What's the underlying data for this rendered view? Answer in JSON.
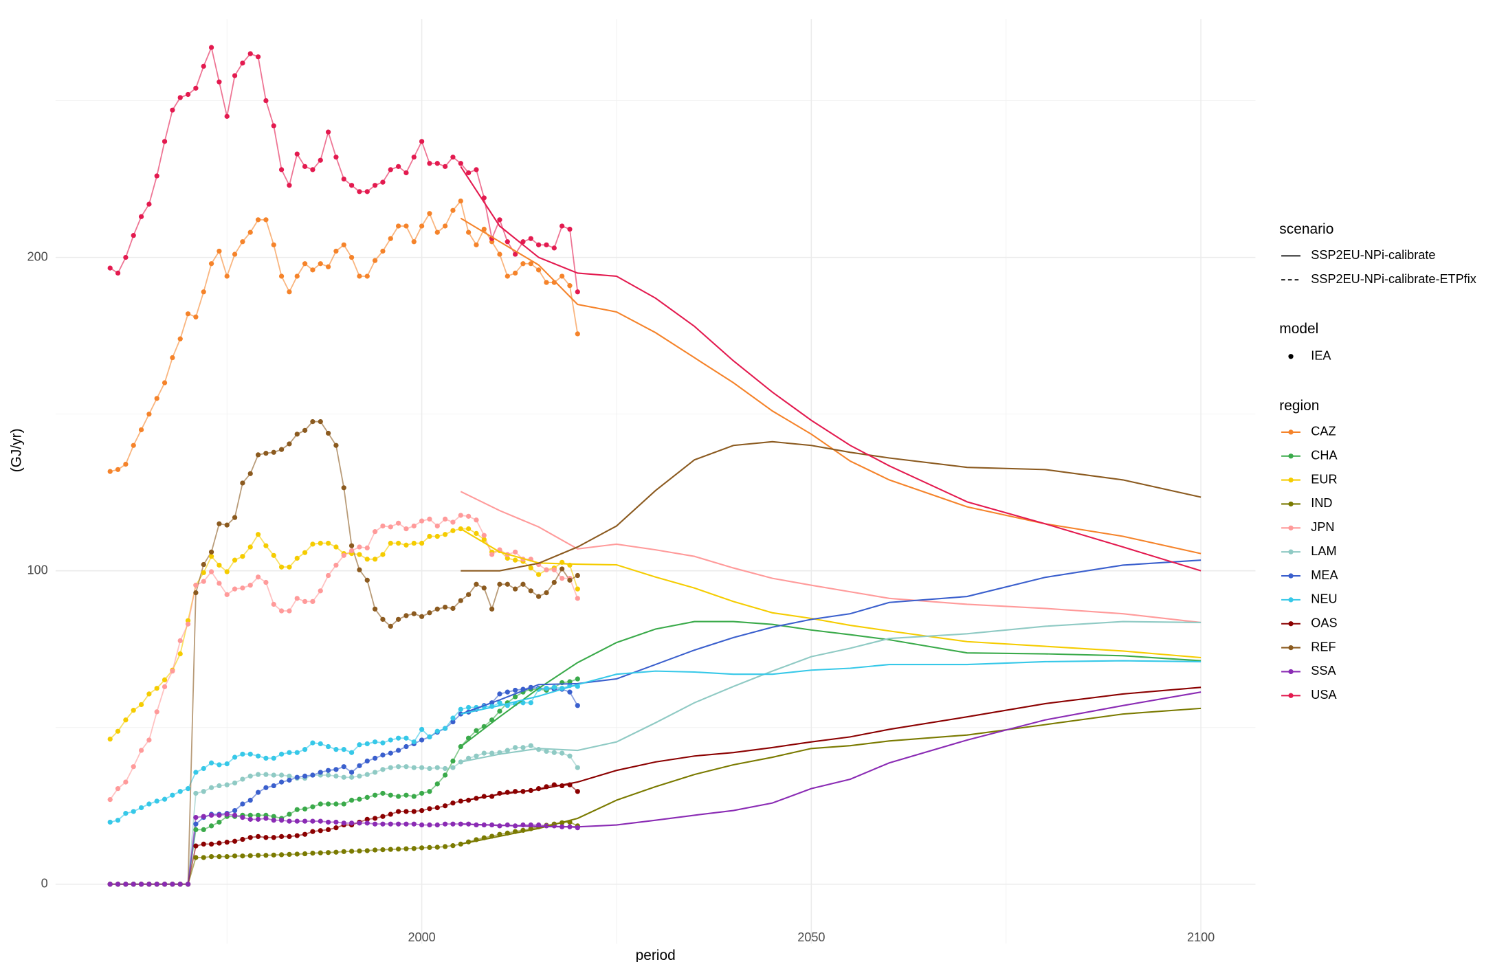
{
  "chart_data": {
    "type": "line",
    "y_label": "(GJ/yr)",
    "x_label": "period",
    "xlim": [
      1953,
      2107
    ],
    "ylim": [
      -19,
      276
    ],
    "xticks": [
      2000,
      2050,
      2100
    ],
    "x_minor_ticks": [
      1975,
      2025,
      2075
    ],
    "yticks": [
      0,
      100,
      200
    ],
    "y_minor_ticks": [
      50,
      150,
      250
    ],
    "grid": true,
    "legend_position": "right",
    "scenario_title": "scenario",
    "scenarios": [
      {
        "name": "SSP2EU-NPi-calibrate",
        "dash": "solid"
      },
      {
        "name": "SSP2EU-NPi-calibrate-ETPfix",
        "dash": "dashed"
      }
    ],
    "model_title": "model",
    "models": [
      "IEA"
    ],
    "region_title": "region",
    "hist_x": [
      1960,
      1961,
      1962,
      1963,
      1964,
      1965,
      1966,
      1967,
      1968,
      1969,
      1970,
      1971,
      1972,
      1973,
      1974,
      1975,
      1976,
      1977,
      1978,
      1979,
      1980,
      1981,
      1982,
      1983,
      1984,
      1985,
      1986,
      1987,
      1988,
      1989,
      1990,
      1991,
      1992,
      1993,
      1994,
      1995,
      1996,
      1997,
      1998,
      1999,
      2000,
      2001,
      2002,
      2003,
      2004,
      2005,
      2006,
      2007,
      2008,
      2009,
      2010,
      2011,
      2012,
      2013,
      2014,
      2015,
      2016,
      2017,
      2018,
      2019,
      2020
    ],
    "model_x": [
      2005,
      2010,
      2015,
      2020,
      2025,
      2030,
      2035,
      2040,
      2045,
      2050,
      2055,
      2060,
      2070,
      2080,
      2090,
      2100
    ],
    "series": [
      {
        "name": "CAZ",
        "color": "#f5832a",
        "hist": [
          131.7,
          132.3,
          134,
          140,
          145,
          150,
          155,
          160,
          168,
          174,
          182,
          181,
          189,
          198,
          202,
          194,
          201,
          205,
          208,
          212,
          212,
          204,
          194,
          189,
          194,
          198,
          196,
          198,
          197,
          202,
          204,
          200,
          194,
          194,
          199,
          202,
          206,
          210,
          210,
          205,
          210,
          214,
          208,
          210,
          215,
          218,
          208,
          204,
          209,
          205,
          201,
          194,
          195,
          198,
          198,
          196,
          192,
          192,
          194,
          191,
          175.6
        ],
        "model": [
          212.5,
          205,
          197.6,
          185,
          182.6,
          176,
          168,
          160,
          151,
          143.6,
          135,
          129,
          120.4,
          115,
          111,
          105.5
        ]
      },
      {
        "name": "CHA",
        "color": "#3aaa4a",
        "hist": [
          0,
          0,
          0,
          0,
          0,
          0,
          0,
          0,
          0,
          0,
          0,
          17.4,
          17.4,
          18.6,
          19.8,
          21.6,
          21.6,
          22,
          22,
          22,
          22,
          21.6,
          21,
          22.3,
          23.8,
          24,
          24.7,
          25.6,
          25.6,
          25.6,
          25.6,
          26.8,
          27.1,
          27.7,
          28.4,
          29,
          28.4,
          28,
          28.4,
          28,
          29,
          29.6,
          32,
          34.8,
          39.3,
          43.9,
          46.6,
          49,
          50.3,
          52.4,
          55.2,
          57.9,
          59.8,
          61.3,
          62.2,
          62.2,
          61.9,
          62.8,
          64.3,
          64.6,
          65.5
        ],
        "model": [
          43.9,
          53.4,
          62.5,
          70.7,
          77.1,
          81.4,
          83.8,
          83.8,
          82.9,
          81.1,
          79.6,
          78,
          73.8,
          73.5,
          72.9,
          71.3
        ]
      },
      {
        "name": "EUR",
        "color": "#f5cc00",
        "hist": [
          46.3,
          48.8,
          52.4,
          55.5,
          57.3,
          60.7,
          62.5,
          65.2,
          68.3,
          73.5,
          84.1,
          95.4,
          99.4,
          104.6,
          101.8,
          99.7,
          103.4,
          104.6,
          107.6,
          111.6,
          108,
          104.9,
          101.2,
          101.2,
          104,
          105.8,
          108.5,
          108.8,
          108.8,
          107.6,
          105.5,
          105.5,
          105.2,
          103.7,
          103.7,
          105.2,
          108.8,
          108.8,
          108.2,
          108.8,
          108.8,
          111,
          111,
          111.6,
          112.8,
          113.4,
          113.4,
          111.9,
          110,
          106,
          106.4,
          104,
          103.4,
          103,
          100.9,
          98.8,
          100.3,
          100.9,
          102.7,
          101.8,
          94.2
        ],
        "model": [
          113.4,
          106,
          102.5,
          102.1,
          101.9,
          98,
          94.5,
          90.2,
          86.6,
          84.8,
          82.6,
          80.8,
          77.4,
          75.9,
          74.4,
          72.3
        ]
      },
      {
        "name": "IND",
        "color": "#7a7a00",
        "hist": [
          0,
          0,
          0,
          0,
          0,
          0,
          0,
          0,
          0,
          0,
          0,
          8.5,
          8.5,
          8.8,
          8.8,
          8.8,
          9,
          9,
          9.1,
          9.2,
          9.2,
          9.3,
          9.4,
          9.5,
          9.6,
          9.7,
          9.9,
          10,
          10.1,
          10.2,
          10.4,
          10.5,
          10.6,
          10.7,
          10.9,
          11,
          11.1,
          11.2,
          11.3,
          11.4,
          11.6,
          11.7,
          11.8,
          12,
          12.3,
          12.8,
          13.5,
          14.2,
          14.8,
          15.3,
          15.9,
          16.3,
          16.8,
          17.2,
          17.7,
          18.3,
          18.8,
          19.2,
          19.6,
          19.8,
          18.6
        ],
        "model": [
          12.8,
          15.3,
          17.8,
          21,
          26.8,
          31.1,
          35,
          38.1,
          40.5,
          43.3,
          44.2,
          45.7,
          47.6,
          50.9,
          54.3,
          56.1
        ]
      },
      {
        "name": "JPN",
        "color": "#ff9a9a",
        "hist": [
          27,
          30.5,
          32.6,
          37.5,
          42.7,
          46,
          55,
          63,
          68,
          77.7,
          83,
          95.4,
          96.6,
          99.7,
          96,
          92.4,
          94.2,
          94.5,
          95.4,
          98,
          96.3,
          89.3,
          87.2,
          87.2,
          91.2,
          90.2,
          90.2,
          93.6,
          98.5,
          101.8,
          104.9,
          106.4,
          107.6,
          107.3,
          112.5,
          114.3,
          114,
          115.2,
          113.4,
          114.3,
          115.9,
          116.5,
          114.3,
          116.5,
          115.5,
          117.7,
          117.4,
          116.2,
          111.3,
          105.2,
          106.7,
          105.2,
          106,
          103.7,
          103.7,
          102,
          100.3,
          100.3,
          97.6,
          97.6,
          91.2
        ],
        "model": [
          125.3,
          119.2,
          114,
          107,
          108.5,
          106.7,
          104.6,
          100.9,
          97.6,
          95.4,
          93.3,
          91.2,
          89.3,
          88,
          86.3,
          83.5
        ]
      },
      {
        "name": "LAM",
        "color": "#8fcac4",
        "hist": [
          0,
          0,
          0,
          0,
          0,
          0,
          0,
          0,
          0,
          0,
          0,
          29,
          29.6,
          30.8,
          31.4,
          31.7,
          32.3,
          33.5,
          34.5,
          35,
          35,
          34.8,
          34.8,
          34.5,
          33.8,
          33.8,
          34.8,
          34.8,
          34.8,
          34.5,
          34.1,
          34.1,
          34.5,
          35,
          35.7,
          36.6,
          37.2,
          37.5,
          37.5,
          37.2,
          37.2,
          36.9,
          37.2,
          36.9,
          37.2,
          39,
          40.2,
          40.9,
          41.8,
          41.8,
          42,
          42.7,
          43.6,
          43.6,
          44.2,
          43,
          42.4,
          42,
          41.8,
          40.9,
          37.2
        ],
        "model": [
          39,
          41.5,
          43.3,
          42.7,
          45.4,
          51.5,
          57.9,
          63.1,
          68,
          72.6,
          75.3,
          78.4,
          79.9,
          82.3,
          83.8,
          83.5
        ]
      },
      {
        "name": "MEA",
        "color": "#3a5fcd",
        "hist": [
          0,
          0,
          0,
          0,
          0,
          0,
          0,
          0,
          0,
          0,
          0,
          19.2,
          21.3,
          22.3,
          22.3,
          22.6,
          23.5,
          25.6,
          26.8,
          29.3,
          30.8,
          31.4,
          32.6,
          33.2,
          34.1,
          34.5,
          34.8,
          35.7,
          36.3,
          36.6,
          37.5,
          35.7,
          37.8,
          39.3,
          40.2,
          41.2,
          41.8,
          42.7,
          43.9,
          44.8,
          46,
          47,
          48.5,
          49.7,
          51.8,
          54.3,
          54.9,
          55.8,
          57,
          57.9,
          60.7,
          61.3,
          61.9,
          62.2,
          62.8,
          62.5,
          62.5,
          62.2,
          62.2,
          61.3,
          57
        ],
        "model": [
          54.3,
          58.8,
          63.7,
          64,
          65.5,
          70.1,
          74.7,
          78.7,
          82,
          84.5,
          86.3,
          89.9,
          91.8,
          97.9,
          101.8,
          103.4
        ]
      },
      {
        "name": "NEU",
        "color": "#36c8e8",
        "hist": [
          19.8,
          20.4,
          22.6,
          23.2,
          24.4,
          25.6,
          26.5,
          27.1,
          28.4,
          29.6,
          30.5,
          35.7,
          36.9,
          38.7,
          38.1,
          38.4,
          40.5,
          41.5,
          41.5,
          40.9,
          40.2,
          40.2,
          41.5,
          42,
          42,
          43,
          45.1,
          44.8,
          43.9,
          43,
          43,
          42,
          44.5,
          44.8,
          45.4,
          45.1,
          46,
          46.6,
          46.6,
          45.4,
          49.4,
          47,
          48.8,
          49.7,
          53,
          55.8,
          56.4,
          56.4,
          56.7,
          56.7,
          57.9,
          57,
          57.6,
          57.9,
          57.9,
          62.2,
          62.5,
          62.8,
          62.5,
          63.4,
          63.1
        ],
        "model": [
          54.3,
          57,
          60,
          63.7,
          67,
          68,
          67.7,
          67,
          67,
          68.3,
          68.9,
          70.1,
          70.1,
          71,
          71.3,
          71
        ]
      },
      {
        "name": "OAS",
        "color": "#8b0000",
        "hist": [
          0,
          0,
          0,
          0,
          0,
          0,
          0,
          0,
          0,
          0,
          0,
          12.2,
          12.8,
          12.8,
          13.1,
          13.4,
          13.7,
          14.3,
          14.9,
          15.2,
          14.9,
          14.9,
          15.2,
          15.2,
          15.5,
          15.9,
          16.8,
          17.1,
          17.4,
          18,
          18.9,
          18.9,
          19.8,
          20.7,
          21,
          21.6,
          22.3,
          23.2,
          23.2,
          23.2,
          23.5,
          24.1,
          24.4,
          25,
          25.9,
          26.5,
          26.8,
          27.4,
          28,
          28,
          29,
          29.3,
          29.6,
          29.6,
          29.9,
          30.5,
          31.1,
          31.7,
          31.4,
          31.7,
          29.6
        ],
        "model": [
          26.5,
          28.7,
          30.2,
          32.6,
          36.3,
          39,
          40.9,
          42,
          43.6,
          45.4,
          47,
          49.4,
          53.4,
          57.6,
          60.7,
          62.8
        ]
      },
      {
        "name": "REF",
        "color": "#8b5a1f",
        "hist": [
          0,
          0,
          0,
          0,
          0,
          0,
          0,
          0,
          0,
          0,
          0,
          93,
          102,
          106,
          115,
          114.6,
          117,
          128,
          131,
          137,
          137.5,
          137.8,
          138.7,
          140.5,
          143.6,
          144.8,
          147.6,
          147.6,
          143.9,
          140,
          126.5,
          108,
          100.3,
          97,
          87.8,
          84.5,
          82.3,
          84.5,
          85.7,
          86.3,
          85.4,
          86.6,
          87.8,
          88.4,
          88,
          90.5,
          92.4,
          95.7,
          94.5,
          87.8,
          95.7,
          95.7,
          94.2,
          95.7,
          93.6,
          91.8,
          93,
          96.3,
          100.6,
          97,
          98.5
        ],
        "model": [
          100,
          100,
          102.4,
          107.6,
          114.3,
          125.6,
          135.4,
          140,
          141.2,
          140,
          137.8,
          136,
          133,
          132.3,
          129,
          123.5
        ]
      },
      {
        "name": "SSA",
        "color": "#8a2bb4",
        "hist": [
          0,
          0,
          0,
          0,
          0,
          0,
          0,
          0,
          0,
          0,
          0,
          21.3,
          21.6,
          22,
          22,
          22.3,
          22,
          21.3,
          20.7,
          20.7,
          21,
          20.4,
          20.4,
          20.1,
          20.1,
          20.1,
          20.1,
          20.1,
          19.8,
          19.8,
          19.5,
          19.5,
          19.5,
          19.5,
          19.2,
          19.2,
          19.2,
          19.2,
          19.2,
          19.2,
          18.9,
          18.9,
          18.9,
          19.2,
          19.2,
          19.2,
          19.2,
          18.9,
          18.9,
          18.9,
          18.6,
          18.9,
          18.6,
          18.9,
          18.9,
          18.9,
          18.6,
          18.6,
          18.3,
          18.3,
          18
        ],
        "model": [
          19.2,
          18.8,
          18.4,
          18.3,
          18.9,
          20.4,
          22,
          23.5,
          25.9,
          30.5,
          33.5,
          38.7,
          46,
          52.4,
          57,
          61.3
        ]
      },
      {
        "name": "USA",
        "color": "#e31a4f",
        "hist": [
          196.6,
          195,
          200,
          207,
          213,
          217,
          226,
          237,
          247,
          251,
          252,
          254,
          261,
          267,
          256,
          245,
          258,
          262,
          265,
          264,
          250,
          242,
          228,
          223,
          233,
          229,
          228,
          231,
          240,
          232,
          225,
          223,
          221,
          221,
          223,
          224,
          228,
          229,
          227,
          232,
          237,
          230,
          230,
          229,
          232,
          230,
          227,
          228,
          219,
          206,
          212,
          205,
          201,
          205,
          206,
          204,
          204,
          203,
          210,
          209,
          189
        ],
        "model": [
          229,
          210,
          200,
          195,
          194,
          187,
          178,
          167,
          157,
          148,
          140,
          133.5,
          122,
          115,
          107.6,
          100
        ]
      }
    ]
  }
}
